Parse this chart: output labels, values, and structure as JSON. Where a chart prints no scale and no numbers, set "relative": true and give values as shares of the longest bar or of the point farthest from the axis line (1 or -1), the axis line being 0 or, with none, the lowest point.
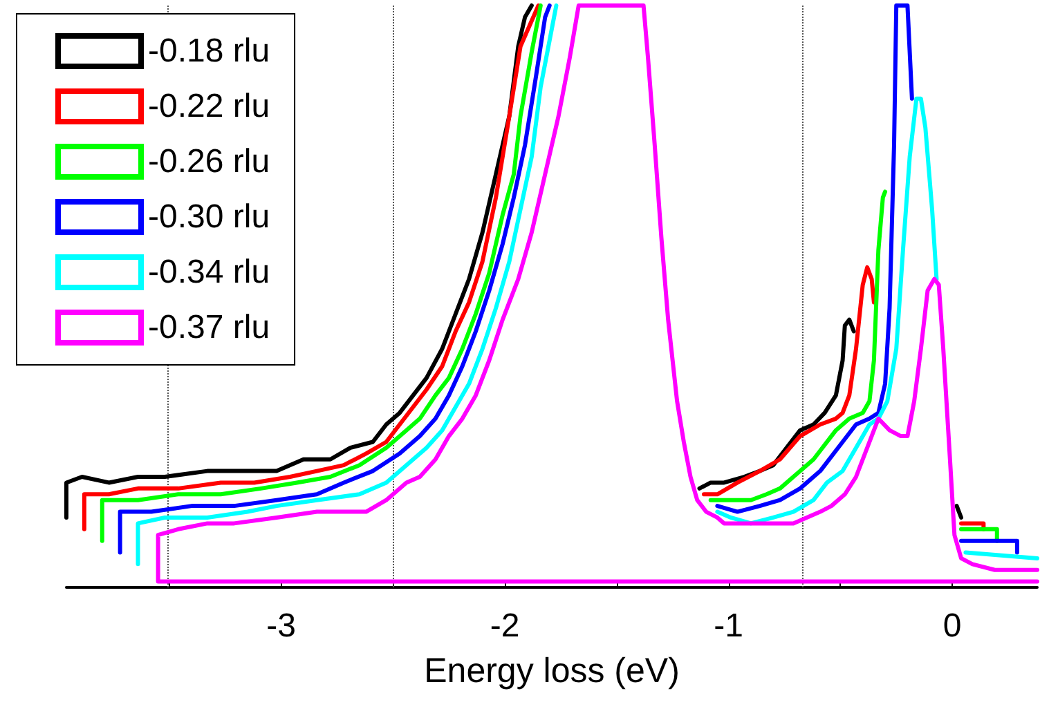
{
  "chart_data": {
    "type": "line",
    "relative": true,
    "xlabel": "Energy loss (eV)",
    "xlim": [
      -3.96,
      0.38
    ],
    "xticks": [
      {
        "value": -3.5,
        "label": null
      },
      -3,
      {
        "value": -2.5,
        "label": null
      },
      -2,
      {
        "value": -1.5,
        "label": null
      },
      -1,
      {
        "value": -0.5,
        "label": null
      },
      0
    ],
    "legend": "top left",
    "marker": "none",
    "line_style": "solid",
    "grid": false,
    "ref_lines": [
      {
        "axis": "x",
        "value": -3.51,
        "color": "#555555",
        "line_style": "dotted"
      },
      {
        "axis": "x",
        "value": -2.5,
        "color": "#555555",
        "line_style": "dotted"
      },
      {
        "axis": "x",
        "value": -0.67,
        "color": "#555555",
        "line_style": "dotted"
      }
    ],
    "series": [
      {
        "name": "-0.18 rlu",
        "color": "#000000",
        "x": [
          -3.96,
          -3.96,
          -3.89,
          -3.77,
          -3.64,
          -3.52,
          -3.33,
          -3.15,
          -3.02,
          -2.9,
          -2.78,
          -2.69,
          -2.59,
          -2.53,
          -2.47,
          -2.41,
          -2.35,
          -2.28,
          -2.22,
          -2.16,
          -2.1,
          -2.04,
          -1.98,
          -1.94,
          -1.91,
          -1.88,
          -1.5,
          -1.13,
          -1.08,
          -1.02,
          -0.93,
          -0.86,
          -0.8,
          -0.74,
          -0.68,
          -0.62,
          -0.57,
          -0.52,
          -0.49,
          -0.48,
          -0.46,
          -0.44,
          -0.2,
          0.02,
          0.04
        ],
        "values": [
          0.12,
          0.18,
          0.19,
          0.18,
          0.19,
          0.19,
          0.2,
          0.2,
          0.2,
          0.22,
          0.22,
          0.24,
          0.25,
          0.28,
          0.3,
          0.33,
          0.36,
          0.41,
          0.47,
          0.53,
          0.61,
          0.71,
          0.81,
          0.93,
          0.98,
          1,
          null,
          0.17,
          0.18,
          0.18,
          0.19,
          0.2,
          0.21,
          0.24,
          0.27,
          0.28,
          0.3,
          0.33,
          0.39,
          0.45,
          0.46,
          0.44,
          null,
          0.14,
          0.12
        ]
      },
      {
        "name": "-0.22 rlu",
        "color": "#ff0000",
        "x": [
          -3.88,
          -3.88,
          -3.77,
          -3.64,
          -3.46,
          -3.27,
          -3.12,
          -2.96,
          -2.84,
          -2.72,
          -2.62,
          -2.53,
          -2.47,
          -2.41,
          -2.35,
          -2.28,
          -2.22,
          -2.16,
          -2.1,
          -2.04,
          -1.98,
          -1.93,
          -1.85,
          -1.5,
          -1.11,
          -1.05,
          -0.96,
          -0.86,
          -0.77,
          -0.68,
          -0.59,
          -0.52,
          -0.49,
          -0.46,
          -0.43,
          -0.4,
          -0.38,
          -0.36,
          -0.35,
          -0.2,
          0.04,
          0.14,
          0.14
        ],
        "values": [
          0.1,
          0.16,
          0.16,
          0.17,
          0.17,
          0.18,
          0.18,
          0.19,
          0.2,
          0.21,
          0.23,
          0.25,
          0.28,
          0.31,
          0.34,
          0.38,
          0.44,
          0.49,
          0.56,
          0.67,
          0.81,
          0.93,
          1,
          null,
          0.16,
          0.16,
          0.18,
          0.2,
          0.22,
          0.26,
          0.28,
          0.29,
          0.3,
          0.33,
          0.41,
          0.52,
          0.55,
          0.53,
          0.49,
          null,
          0.11,
          0.11,
          0.1
        ]
      },
      {
        "name": "-0.26 rlu",
        "color": "#00ff00",
        "x": [
          -3.8,
          -3.8,
          -3.64,
          -3.46,
          -3.27,
          -3.09,
          -2.93,
          -2.78,
          -2.65,
          -2.53,
          -2.44,
          -2.38,
          -2.31,
          -2.25,
          -2.19,
          -2.13,
          -2.07,
          -2.01,
          -1.96,
          -1.93,
          -1.88,
          -1.84,
          -1.5,
          -1.08,
          -0.99,
          -0.9,
          -0.83,
          -0.77,
          -0.71,
          -0.62,
          -0.52,
          -0.46,
          -0.4,
          -0.37,
          -0.35,
          -0.33,
          -0.31,
          -0.3,
          -0.1,
          0.04,
          0.2,
          0.2
        ],
        "values": [
          0.08,
          0.15,
          0.15,
          0.16,
          0.16,
          0.17,
          0.18,
          0.19,
          0.21,
          0.24,
          0.27,
          0.29,
          0.33,
          0.36,
          0.41,
          0.47,
          0.54,
          0.64,
          0.71,
          0.81,
          0.92,
          1,
          null,
          0.15,
          0.15,
          0.15,
          0.16,
          0.17,
          0.19,
          0.22,
          0.27,
          0.29,
          0.3,
          0.32,
          0.39,
          0.58,
          0.67,
          0.68,
          null,
          0.1,
          0.1,
          0.08
        ]
      },
      {
        "name": "-0.30 rlu",
        "color": "#0000ff",
        "x": [
          -3.72,
          -3.72,
          -3.58,
          -3.4,
          -3.21,
          -3.02,
          -2.84,
          -2.72,
          -2.59,
          -2.47,
          -2.38,
          -2.31,
          -2.25,
          -2.19,
          -2.13,
          -2.07,
          -2.01,
          -1.96,
          -1.91,
          -1.86,
          -1.82,
          -1.8,
          -1.5,
          -1.05,
          -0.96,
          -0.86,
          -0.77,
          -0.68,
          -0.59,
          -0.49,
          -0.43,
          -0.37,
          -0.33,
          -0.3,
          -0.28,
          -0.26,
          -0.25,
          -0.2,
          -0.18,
          -0.05,
          0.04,
          0.29,
          0.29
        ],
        "values": [
          0.06,
          0.13,
          0.13,
          0.14,
          0.14,
          0.15,
          0.16,
          0.18,
          0.2,
          0.23,
          0.26,
          0.29,
          0.33,
          0.38,
          0.44,
          0.51,
          0.59,
          0.67,
          0.76,
          0.88,
          0.98,
          1,
          null,
          0.14,
          0.13,
          0.14,
          0.15,
          0.17,
          0.2,
          0.25,
          0.28,
          0.29,
          0.3,
          0.35,
          0.48,
          0.76,
          1,
          1,
          0.84,
          null,
          0.08,
          0.08,
          0.06
        ]
      },
      {
        "name": "-0.34 rlu",
        "color": "#00ffff",
        "x": [
          -3.64,
          -3.64,
          -3.52,
          -3.33,
          -3.15,
          -3.02,
          -2.84,
          -2.65,
          -2.53,
          -2.44,
          -2.35,
          -2.28,
          -2.22,
          -2.16,
          -2.1,
          -2.04,
          -1.98,
          -1.93,
          -1.88,
          -1.84,
          -1.79,
          -1.77,
          -1.5,
          -1.05,
          -0.99,
          -0.9,
          -0.8,
          -0.71,
          -0.62,
          -0.56,
          -0.49,
          -0.43,
          -0.37,
          -0.33,
          -0.29,
          -0.25,
          -0.22,
          -0.19,
          -0.16,
          -0.14,
          -0.12,
          -0.09,
          -0.07,
          -0.02,
          0.06,
          0.38
        ],
        "values": [
          0.04,
          0.11,
          0.12,
          0.12,
          0.13,
          0.14,
          0.15,
          0.16,
          0.18,
          0.21,
          0.24,
          0.27,
          0.31,
          0.35,
          0.41,
          0.48,
          0.56,
          0.65,
          0.74,
          0.86,
          0.96,
          1,
          null,
          0.13,
          0.12,
          0.11,
          0.12,
          0.13,
          0.15,
          0.18,
          0.2,
          0.24,
          0.28,
          0.29,
          0.32,
          0.41,
          0.58,
          0.74,
          0.84,
          0.84,
          0.79,
          0.65,
          0.53,
          null,
          0.06,
          0.05
        ]
      },
      {
        "name": "-0.37 rlu",
        "color": "#ff00ff",
        "x": [
          0.38,
          -3.55,
          -3.55,
          -3.46,
          -3.33,
          -3.21,
          -3.02,
          -2.84,
          -2.72,
          -2.62,
          -2.53,
          -2.44,
          -2.38,
          -2.31,
          -2.25,
          -2.19,
          -2.13,
          -2.07,
          -2.01,
          -1.94,
          -1.88,
          -1.82,
          -1.76,
          -1.71,
          -1.67,
          -1.38,
          -1.36,
          -1.33,
          -1.3,
          -1.27,
          -1.23,
          -1.2,
          -1.17,
          -1.14,
          -1.1,
          -1.05,
          -1.02,
          -0.93,
          -0.83,
          -0.71,
          -0.65,
          -0.59,
          -0.54,
          -0.48,
          -0.43,
          -0.37,
          -0.33,
          -0.28,
          -0.23,
          -0.2,
          -0.17,
          -0.14,
          -0.11,
          -0.08,
          -0.06,
          -0.04,
          -0.01,
          0.01,
          0.04,
          0.09,
          0.19,
          0.38
        ],
        "values": [
          0.01,
          0.01,
          0.09,
          0.1,
          0.11,
          0.11,
          0.12,
          0.13,
          0.13,
          0.13,
          0.15,
          0.18,
          0.19,
          0.22,
          0.26,
          0.29,
          0.33,
          0.39,
          0.46,
          0.53,
          0.61,
          0.71,
          0.81,
          0.91,
          1,
          1,
          0.91,
          0.76,
          0.6,
          0.46,
          0.32,
          0.25,
          0.19,
          0.15,
          0.13,
          0.12,
          0.11,
          0.11,
          0.11,
          0.11,
          0.12,
          0.13,
          0.14,
          0.16,
          0.19,
          0.25,
          0.29,
          0.27,
          0.26,
          0.26,
          0.32,
          0.41,
          0.51,
          0.53,
          0.52,
          0.41,
          0.22,
          0.09,
          0.05,
          0.04,
          0.03,
          0.03
        ]
      }
    ]
  }
}
